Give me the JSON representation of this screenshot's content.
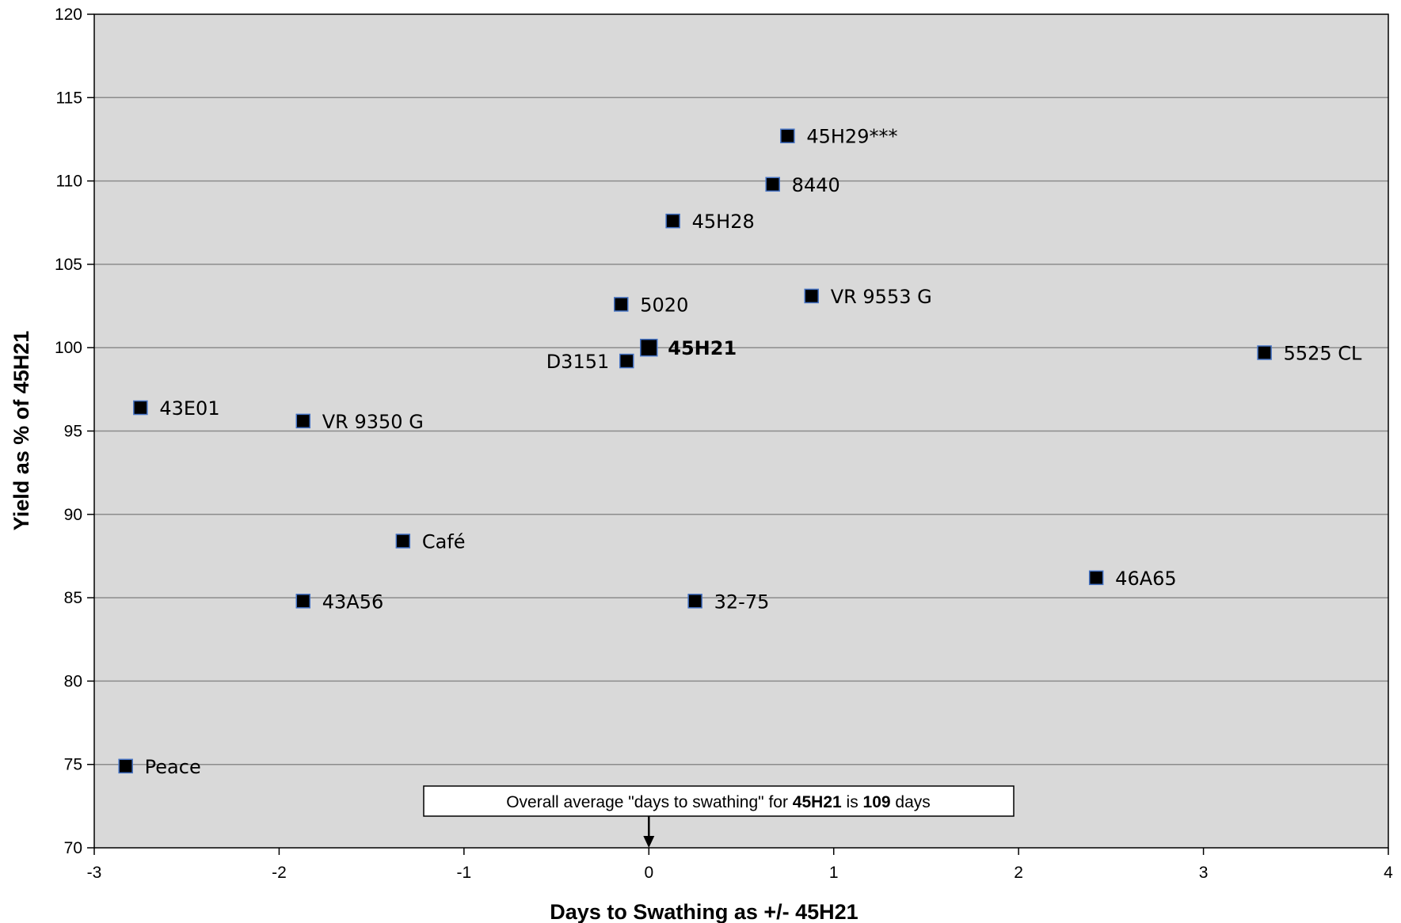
{
  "chart_data": {
    "type": "scatter",
    "xlabel": "Days to Swathing as +/- 45H21",
    "ylabel": "Yield as % of 45H21",
    "xlim": [
      -3,
      4
    ],
    "ylim": [
      70,
      120
    ],
    "x_ticks": [
      "-3",
      "-2",
      "-1",
      "0",
      "1",
      "2",
      "3",
      "4"
    ],
    "y_ticks": [
      "70",
      "75",
      "80",
      "85",
      "90",
      "95",
      "100",
      "105",
      "110",
      "115",
      "120"
    ],
    "grid": "horizontal",
    "colors": {
      "plot_background": "#d9d9d9",
      "marker": "#000000",
      "marker_edge": "#4472c4",
      "gridline": "#8c8c8c"
    },
    "points": [
      {
        "label": "45H29***",
        "x": 0.75,
        "y": 112.7
      },
      {
        "label": "8440",
        "x": 0.67,
        "y": 109.8
      },
      {
        "label": "45H28",
        "x": 0.13,
        "y": 107.6
      },
      {
        "label": "VR 9553 G",
        "x": 0.88,
        "y": 103.1
      },
      {
        "label": "5020",
        "x": -0.15,
        "y": 102.6
      },
      {
        "label": "45H21",
        "x": 0.0,
        "y": 100.0,
        "bold": true
      },
      {
        "label": "D3151",
        "x": -0.12,
        "y": 99.2,
        "label_side": "left"
      },
      {
        "label": "5525 CL",
        "x": 3.33,
        "y": 99.7
      },
      {
        "label": "43E01",
        "x": -2.75,
        "y": 96.4
      },
      {
        "label": "VR 9350 G",
        "x": -1.87,
        "y": 95.6
      },
      {
        "label": "Café",
        "x": -1.33,
        "y": 88.4
      },
      {
        "label": "46A65",
        "x": 2.42,
        "y": 86.2
      },
      {
        "label": "43A56",
        "x": -1.87,
        "y": 84.8
      },
      {
        "label": "32-75",
        "x": 0.25,
        "y": 84.8
      },
      {
        "label": "Peace",
        "x": -2.83,
        "y": 74.9
      }
    ],
    "annotation": {
      "parts": [
        "Overall average \"days to swathing\" for ",
        "45H21",
        " is ",
        "109",
        " days"
      ],
      "bold_parts": [
        1,
        3
      ],
      "arrow_x": 0
    }
  }
}
